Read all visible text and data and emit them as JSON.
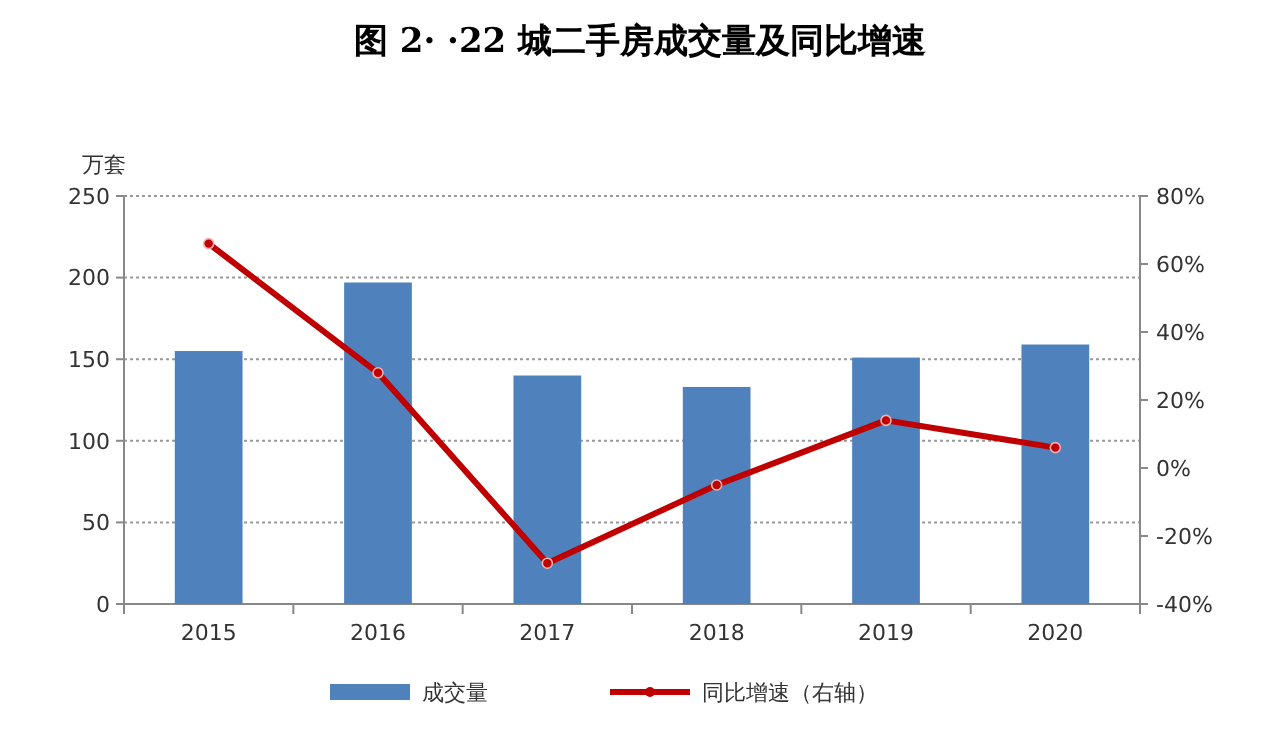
{
  "chart_data": {
    "type": "bar",
    "title": "图 2· ·22 城二手房成交量及同比增速",
    "ylabel": "万套",
    "categories": [
      "2015",
      "2016",
      "2017",
      "2018",
      "2019",
      "2020"
    ],
    "series": [
      {
        "name": "成交量",
        "color": "#4f81bd",
        "values": [
          155,
          197,
          140,
          133,
          151,
          159
        ]
      },
      {
        "name": "同比增速（右轴）",
        "type": "line",
        "axis": "y2",
        "color": "#c00000",
        "marker": "circle",
        "values": [
          66,
          28,
          -28,
          -5,
          14,
          6
        ]
      }
    ],
    "ylim": [
      0,
      250
    ],
    "yticks": [
      0,
      50,
      100,
      150,
      200,
      250
    ],
    "y2lim": [
      -40,
      80
    ],
    "y2ticks": [
      {
        "value": -40,
        "label": "-40%"
      },
      {
        "value": -20,
        "label": "-20%"
      },
      {
        "value": 0,
        "label": "0%"
      },
      {
        "value": 20,
        "label": "20%"
      },
      {
        "value": 40,
        "label": "40%"
      },
      {
        "value": 60,
        "label": "60%"
      },
      {
        "value": 80,
        "label": "80%"
      }
    ],
    "grid": "y",
    "legend": "bottom"
  }
}
